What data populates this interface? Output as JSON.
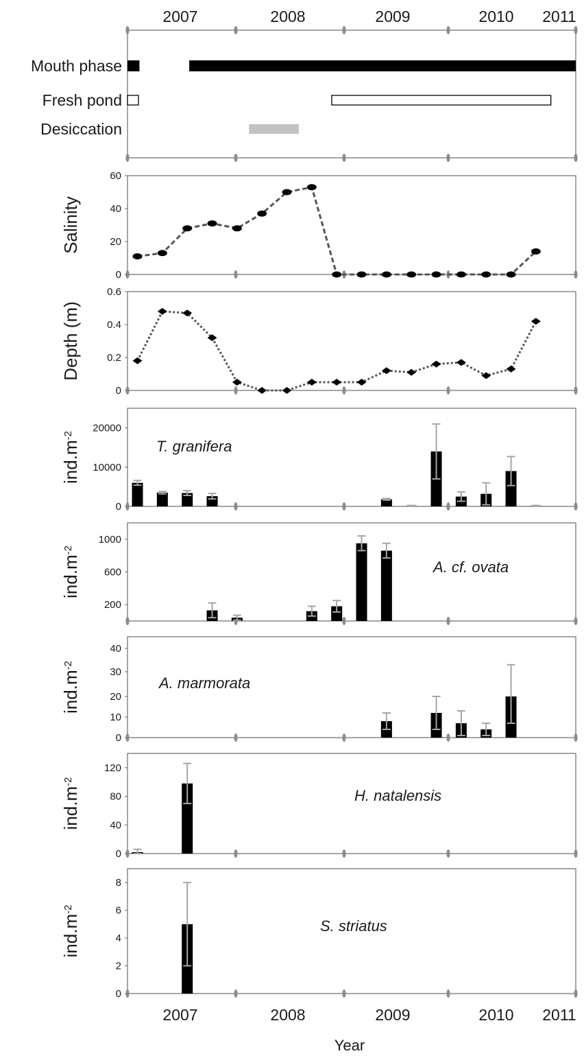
{
  "figure": {
    "years_top": [
      "2007",
      "2008",
      "2009",
      "2010",
      "2011"
    ],
    "years_bottom": [
      "2007",
      "2008",
      "2009",
      "2010",
      "2011"
    ],
    "xlabel": "Year"
  },
  "colors": {
    "mouth_phase": "#000000",
    "fresh_pond_fill": "#ffffff",
    "fresh_pond_stroke": "#000000",
    "desiccation": "#c2c2c2",
    "marker": "#000000",
    "line": "#555555",
    "bar": "#000000",
    "error_bar": "#a6a6a6",
    "frame": "#6b6b6b"
  },
  "chart_data": [
    {
      "type": "timeline",
      "x_unit": "decimal year",
      "rows": [
        {
          "label": "Mouth phase",
          "style": "filled",
          "segments": [
            [
              2006.6,
              2006.72
            ],
            [
              2007.22,
              2011.1
            ]
          ]
        },
        {
          "label": "Fresh pond",
          "style": "outline",
          "segments": [
            [
              2006.6,
              2006.71
            ],
            [
              2008.65,
              2010.85
            ]
          ]
        },
        {
          "label": "Desiccation",
          "style": "grey",
          "segments": [
            [
              2007.82,
              2008.32
            ]
          ]
        }
      ]
    },
    {
      "type": "line",
      "ylabel": "Salinity",
      "ylim": [
        0,
        60
      ],
      "yticks": [
        "0",
        "20",
        "40",
        "60"
      ],
      "marker": "ellipse",
      "line_style": "dashed",
      "points": [
        [
          2006.7,
          11
        ],
        [
          2006.95,
          13
        ],
        [
          2007.2,
          28
        ],
        [
          2007.45,
          31
        ],
        [
          2007.7,
          28
        ],
        [
          2007.95,
          37
        ],
        [
          2008.2,
          50
        ],
        [
          2008.45,
          53
        ],
        [
          2008.7,
          0
        ],
        [
          2008.95,
          0
        ],
        [
          2009.2,
          0
        ],
        [
          2009.45,
          0
        ],
        [
          2009.7,
          0
        ],
        [
          2009.95,
          0
        ],
        [
          2010.2,
          0
        ],
        [
          2010.45,
          0
        ],
        [
          2010.7,
          14
        ]
      ]
    },
    {
      "type": "line",
      "ylabel": "Depth (m)",
      "ylim": [
        0,
        0.6
      ],
      "yticks": [
        "0",
        "0.2",
        "0.4",
        "0.6"
      ],
      "marker": "diamond",
      "line_style": "dotted",
      "points": [
        [
          2006.7,
          0.18
        ],
        [
          2006.95,
          0.48
        ],
        [
          2007.2,
          0.47
        ],
        [
          2007.45,
          0.32
        ],
        [
          2007.7,
          0.05
        ],
        [
          2007.95,
          0.0
        ],
        [
          2008.2,
          0.0
        ],
        [
          2008.45,
          0.05
        ],
        [
          2008.7,
          0.05
        ],
        [
          2008.95,
          0.05
        ],
        [
          2009.2,
          0.12
        ],
        [
          2009.45,
          0.11
        ],
        [
          2009.7,
          0.16
        ],
        [
          2009.95,
          0.17
        ],
        [
          2010.2,
          0.09
        ],
        [
          2010.45,
          0.13
        ],
        [
          2010.7,
          0.42
        ]
      ]
    },
    {
      "type": "bar",
      "ylabel": "ind.m-2",
      "species": "T. granifera",
      "ylim": [
        0,
        25000
      ],
      "yticks": [
        "0",
        "10000",
        "20000"
      ],
      "bars": [
        {
          "x": 2006.7,
          "value": 6000,
          "error": 600
        },
        {
          "x": 2006.95,
          "value": 3500,
          "error": 300
        },
        {
          "x": 2007.2,
          "value": 3400,
          "error": 600
        },
        {
          "x": 2007.45,
          "value": 2600,
          "error": 700
        },
        {
          "x": 2009.2,
          "value": 1800,
          "error": 200
        },
        {
          "x": 2009.45,
          "value": 100,
          "error": 150
        },
        {
          "x": 2009.7,
          "value": 14000,
          "error": 7000
        },
        {
          "x": 2009.95,
          "value": 2500,
          "error": 1200
        },
        {
          "x": 2010.2,
          "value": 3200,
          "error": 2800
        },
        {
          "x": 2010.45,
          "value": 9000,
          "error": 3700
        },
        {
          "x": 2010.7,
          "value": 100,
          "error": 150
        }
      ]
    },
    {
      "type": "bar",
      "ylabel": "ind.m-2",
      "species": "A. cf. ovata",
      "ylim": [
        0,
        1200
      ],
      "yticks": [
        "200",
        "600",
        "1000"
      ],
      "bars": [
        {
          "x": 2007.45,
          "value": 130,
          "error": 90
        },
        {
          "x": 2007.7,
          "value": 40,
          "error": 30
        },
        {
          "x": 2008.45,
          "value": 120,
          "error": 60
        },
        {
          "x": 2008.7,
          "value": 180,
          "error": 70
        },
        {
          "x": 2008.95,
          "value": 950,
          "error": 90
        },
        {
          "x": 2009.2,
          "value": 860,
          "error": 90
        }
      ]
    },
    {
      "type": "bar",
      "ylabel": "ind.m-2",
      "species": "A. marmorata",
      "ylim": [
        0,
        45
      ],
      "ytick_values": [
        0,
        10,
        20,
        30,
        40
      ],
      "ytick_labels": [
        "0",
        "10",
        "20",
        "30",
        "40"
      ],
      "ytick_scale": "uneven: the 30 and 40 ticks are drawn further apart than 0, 10 and 20",
      "bars": [
        {
          "x": 2009.2,
          "value": 8,
          "error": 4
        },
        {
          "x": 2009.7,
          "value": 12,
          "error": 8
        },
        {
          "x": 2009.95,
          "value": 7,
          "error": 6
        },
        {
          "x": 2010.2,
          "value": 4,
          "error": 3
        },
        {
          "x": 2010.45,
          "value": 20,
          "error": 13
        }
      ]
    },
    {
      "type": "bar",
      "ylabel": "ind.m-2",
      "species": "H. natalensis",
      "ylim": [
        0,
        140
      ],
      "yticks": [
        "0",
        "40",
        "80",
        "120"
      ],
      "bars": [
        {
          "x": 2006.7,
          "value": 2,
          "error": 4
        },
        {
          "x": 2007.2,
          "value": 98,
          "error": 28
        }
      ]
    },
    {
      "type": "bar",
      "ylabel": "ind.m-2",
      "species": "S. striatus",
      "ylim": [
        0,
        9
      ],
      "yticks": [
        "0",
        "2",
        "4",
        "6",
        "8"
      ],
      "bars": [
        {
          "x": 2007.2,
          "value": 5,
          "error": 3
        }
      ]
    }
  ]
}
